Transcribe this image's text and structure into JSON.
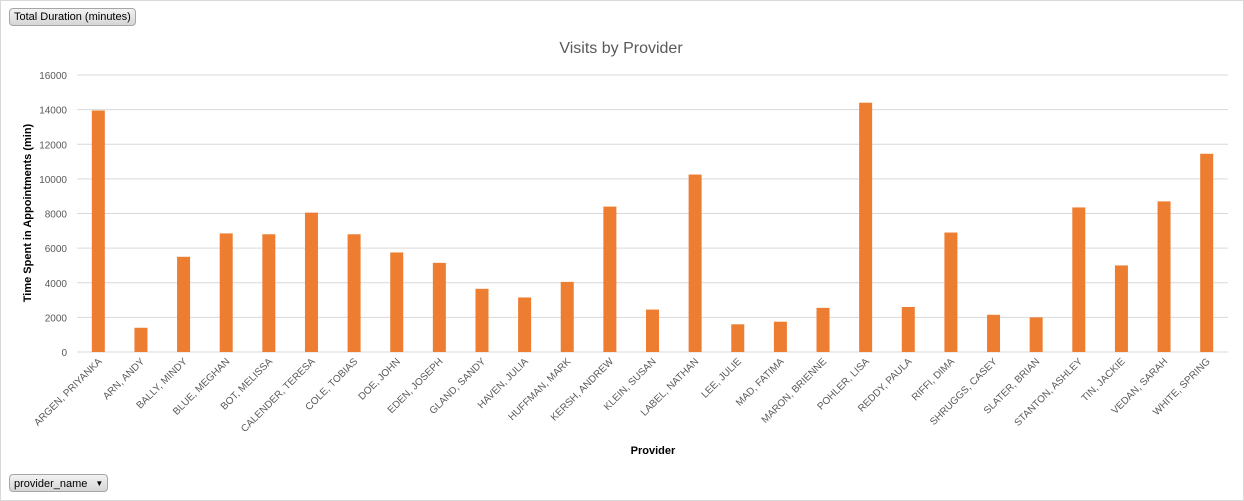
{
  "field_buttons": {
    "value_field": "Total Duration (minutes)",
    "axis_field": "provider_name"
  },
  "colors": {
    "bar": "#ED7D31",
    "grid": "#D9D9D9"
  },
  "icons": {
    "dropdown": "chevron-down-icon"
  },
  "chart_data": {
    "type": "bar",
    "title": "Visits by Provider",
    "xlabel": "Provider",
    "ylabel": "Time Spent in Appointments (min)",
    "ylim": [
      0,
      16000
    ],
    "yticks": [
      "0",
      "2000",
      "4000",
      "6000",
      "8000",
      "10000",
      "12000",
      "14000",
      "16000"
    ],
    "grid": true,
    "categories": [
      "ARGEN, PRIYANKA",
      "ARN, ANDY",
      "BALLY, MINDY",
      "BLUE, MEGHAN",
      "BOT, MELISSA",
      "CALENDER, TERESA",
      "COLE, TOBIAS",
      "DOE, JOHN",
      "EDEN, JOSEPH",
      "GLAND, SANDY",
      "HAVEN, JULIA",
      "HUFFMAN, MARK",
      "KERSH, ANDREW",
      "KLEIN, SUSAN",
      "LABEL, NATHAN",
      "LEE, JULIE",
      "MAD, FATIMA",
      "MARON, BRIENNE",
      "POHLER, LISA",
      "REDDY, PAULA",
      "RIFFI, DIMA",
      "SHRUGGS, CASEY",
      "SLATER, BRIAN",
      "STANTON, ASHLEY",
      "TIN, JACKIE",
      "VEDAN, SARAH",
      "WHITE, SPRING"
    ],
    "values": [
      13950,
      1400,
      5500,
      6850,
      6800,
      8050,
      6800,
      5750,
      5150,
      3650,
      3150,
      4050,
      8400,
      2450,
      10250,
      1600,
      1750,
      2550,
      14400,
      2600,
      6900,
      2150,
      2000,
      8350,
      5000,
      8700,
      11450
    ]
  }
}
